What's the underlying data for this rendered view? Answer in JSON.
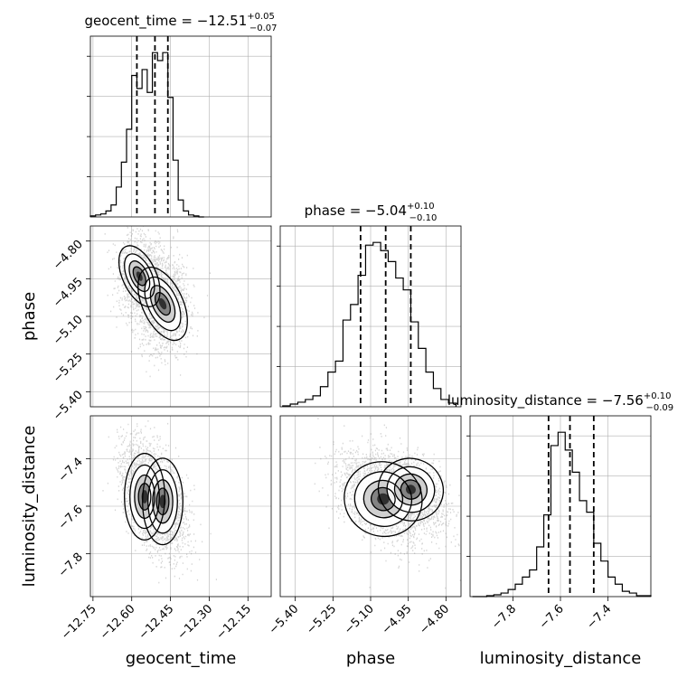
{
  "chart_data": {
    "type": "corner",
    "parameters": [
      "geocent_time",
      "phase",
      "luminosity_distance"
    ],
    "axis_labels": {
      "geocent_time": "geocent_time",
      "phase": "phase",
      "luminosity_distance": "luminosity_distance"
    },
    "ranges": {
      "geocent_time": [
        -12.76,
        -12.06
      ],
      "phase": [
        -5.46,
        -4.74
      ],
      "luminosity_distance": [
        -7.98,
        -7.22
      ]
    },
    "ticks": {
      "geocent_time": [
        -12.75,
        -12.6,
        -12.45,
        -12.3,
        -12.15
      ],
      "phase": [
        -5.4,
        -5.25,
        -5.1,
        -4.95,
        -4.8
      ],
      "luminosity_distance": [
        -7.8,
        -7.6,
        -7.4
      ]
    },
    "tick_labels": {
      "geocent_time": [
        "−12.75",
        "−12.60",
        "−12.45",
        "−12.30",
        "−12.15"
      ],
      "phase": [
        "−5.40",
        "−5.25",
        "−5.10",
        "−4.95",
        "−4.80"
      ],
      "luminosity_distance": [
        "−7.8",
        "−7.6",
        "−7.4"
      ]
    },
    "titles": [
      {
        "param": "geocent_time",
        "prefix": "geocent_time = −12.51",
        "sup": "+0.05",
        "sub": "−0.07"
      },
      {
        "param": "phase",
        "prefix": "phase = −5.04",
        "sup": "+0.10",
        "sub": "−0.10"
      },
      {
        "param": "luminosity_distance",
        "prefix": "luminosity_distance = −7.56",
        "sup": "+0.10",
        "sub": "−0.09"
      }
    ],
    "quantiles": {
      "geocent_time": [
        -12.58,
        -12.51,
        -12.46
      ],
      "phase": [
        -5.14,
        -5.04,
        -4.94
      ],
      "luminosity_distance": [
        -7.65,
        -7.56,
        -7.46
      ]
    },
    "histograms": {
      "geocent_time": {
        "edges": [
          -12.76,
          -12.74,
          -12.72,
          -12.7,
          -12.68,
          -12.66,
          -12.64,
          -12.62,
          -12.6,
          -12.58,
          -12.56,
          -12.54,
          -12.52,
          -12.5,
          -12.48,
          -12.46,
          -12.44,
          -12.42,
          -12.4,
          -12.38,
          -12.36,
          -12.34,
          -12.32
        ],
        "counts": [
          1,
          2,
          3,
          6,
          12,
          30,
          55,
          88,
          142,
          129,
          148,
          125,
          165,
          157,
          165,
          120,
          57,
          17,
          6,
          2,
          1,
          0
        ]
      },
      "phase": {
        "edges": [
          -5.45,
          -5.42,
          -5.39,
          -5.36,
          -5.33,
          -5.3,
          -5.27,
          -5.24,
          -5.21,
          -5.18,
          -5.15,
          -5.12,
          -5.09,
          -5.06,
          -5.03,
          -5.0,
          -4.97,
          -4.94,
          -4.91,
          -4.88,
          -4.85,
          -4.82,
          -4.79,
          -4.76
        ],
        "counts": [
          1,
          3,
          5,
          8,
          12,
          22,
          38,
          50,
          95,
          112,
          144,
          177,
          180,
          171,
          159,
          141,
          128,
          93,
          64,
          38,
          20,
          8,
          4
        ]
      },
      "luminosity_distance": {
        "edges": [
          -7.97,
          -7.94,
          -7.91,
          -7.88,
          -7.85,
          -7.82,
          -7.79,
          -7.76,
          -7.73,
          -7.7,
          -7.67,
          -7.64,
          -7.61,
          -7.58,
          -7.55,
          -7.52,
          -7.49,
          -7.46,
          -7.43,
          -7.4,
          -7.37,
          -7.34,
          -7.31,
          -7.28,
          -7.25,
          -7.22
        ],
        "counts": [
          0,
          0,
          1,
          2,
          4,
          8,
          14,
          22,
          30,
          56,
          92,
          170,
          185,
          165,
          140,
          108,
          95,
          60,
          40,
          22,
          14,
          6,
          4,
          1,
          1
        ]
      }
    },
    "joint": {
      "phase_vs_geocent_time": {
        "x": "geocent_time",
        "y": "phase",
        "modes": [
          {
            "mx": -12.57,
            "my": -4.94,
            "sx": 0.025,
            "sy": 0.05,
            "w": 0.45
          },
          {
            "mx": -12.48,
            "my": -5.05,
            "sx": 0.03,
            "sy": 0.06,
            "w": 0.55
          }
        ],
        "scatter_n": 2600,
        "contour_levels": [
          0.3,
          0.55,
          0.8
        ]
      },
      "luminosity_distance_vs_geocent_time": {
        "x": "geocent_time",
        "y": "luminosity_distance",
        "modes": [
          {
            "mx": -12.55,
            "my": -7.56,
            "sx": 0.03,
            "sy": 0.07,
            "w": 0.5
          },
          {
            "mx": -12.48,
            "my": -7.58,
            "sx": 0.03,
            "sy": 0.07,
            "w": 0.5
          }
        ],
        "scatter_n": 2600,
        "contour_levels": [
          0.3,
          0.55,
          0.8
        ]
      },
      "luminosity_distance_vs_phase": {
        "x": "phase",
        "y": "luminosity_distance",
        "modes": [
          {
            "mx": -5.05,
            "my": -7.57,
            "sx": 0.06,
            "sy": 0.06,
            "w": 0.6
          },
          {
            "mx": -4.94,
            "my": -7.53,
            "sx": 0.05,
            "sy": 0.05,
            "w": 0.4
          }
        ],
        "scatter_n": 2600,
        "contour_levels": [
          0.3,
          0.55,
          0.8
        ]
      }
    },
    "grid": true
  }
}
